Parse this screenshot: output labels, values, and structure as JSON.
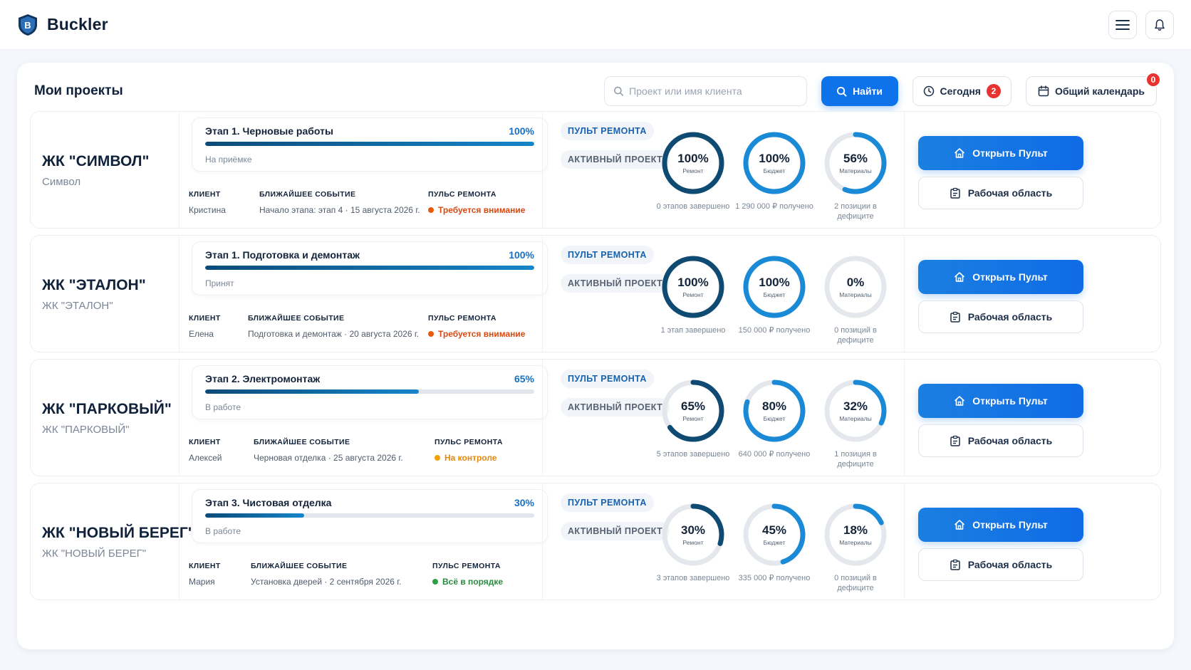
{
  "app": {
    "name": "Buckler"
  },
  "header": {
    "menu_icon": "menu-icon",
    "bell_icon": "bell-icon"
  },
  "page": {
    "title": "Мои проекты",
    "search": {
      "placeholder": "Проект или имя клиента",
      "value": ""
    },
    "find_label": "Найти",
    "today_label": "Сегодня",
    "today_count": "2",
    "calendar_label": "Общий календарь",
    "calendar_count": "0"
  },
  "labels": {
    "client": "КЛИЕНТ",
    "next_event": "БЛИЖАЙШЕЕ СОБЫТИЕ",
    "pulse": "ПУЛЬС РЕМОНТА",
    "chip_remont": "ПУЛЬТ РЕМОНТА",
    "chip_active": "АКТИВНЫЙ ПРОЕКТ",
    "ring_repair": "Ремонт",
    "ring_budget": "Бюджет",
    "ring_materials": "Материалы",
    "open_btn": "Открыть Пульт",
    "work_btn": "Рабочая область"
  },
  "colors": {
    "accent": "#0e72ea",
    "ring_dark": "#0e4a72",
    "ring_blue": "#1a8ad6",
    "ring_track": "#e4e7ec",
    "pulse_red": "#e8590c",
    "pulse_red_text": "#d9480f",
    "pulse_orange": "#f59f00",
    "pulse_orange_text": "#e8890c",
    "pulse_green": "#2f9e44",
    "pulse_green_text": "#2b8a3e"
  },
  "projects": [
    {
      "name": "ЖК \"СИМВОЛ\"",
      "subtitle": "Символ",
      "stage_title": "Этап 1. Черновые работы",
      "stage_pct": "100%",
      "stage_progress": 1.0,
      "stage_status": "На приёмке",
      "client": "Кристина",
      "next_event": "Начало этапа: этап 4 · 15 августа 2026 г.",
      "pulse": "Требуется внимание",
      "pulse_level": "red",
      "repair": {
        "value": "100%",
        "fraction": 1.0,
        "caption": "0 этапов завершено"
      },
      "budget": {
        "value": "100%",
        "fraction": 1.0,
        "caption": "1 290 000 ₽ получено"
      },
      "materials": {
        "value": "56%",
        "fraction": 0.56,
        "caption": "2 позиции в дефиците"
      }
    },
    {
      "name": "ЖК \"ЭТАЛОН\"",
      "subtitle": "ЖК \"ЭТАЛОН\"",
      "stage_title": "Этап 1. Подготовка и демонтаж",
      "stage_pct": "100%",
      "stage_progress": 1.0,
      "stage_status": "Принят",
      "client": "Елена",
      "next_event": "Подготовка и демонтаж · 20 августа 2026 г.",
      "pulse": "Требуется внимание",
      "pulse_level": "red",
      "repair": {
        "value": "100%",
        "fraction": 1.0,
        "caption": "1 этап завершено"
      },
      "budget": {
        "value": "100%",
        "fraction": 1.0,
        "caption": "150 000 ₽ получено"
      },
      "materials": {
        "value": "0%",
        "fraction": 0.0,
        "caption": "0 позиций в дефиците"
      }
    },
    {
      "name": "ЖК \"ПАРКОВЫЙ\"",
      "subtitle": "ЖК \"ПАРКОВЫЙ\"",
      "stage_title": "Этап 2. Электромонтаж",
      "stage_pct": "65%",
      "stage_progress": 0.65,
      "stage_status": "В работе",
      "client": "Алексей",
      "next_event": "Черновая отделка · 25 августа 2026 г.",
      "pulse": "На контроле",
      "pulse_level": "orange",
      "repair": {
        "value": "65%",
        "fraction": 0.65,
        "caption": "5 этапов завершено"
      },
      "budget": {
        "value": "80%",
        "fraction": 0.8,
        "caption": "640 000 ₽ получено"
      },
      "materials": {
        "value": "32%",
        "fraction": 0.32,
        "caption": "1 позиция в дефиците"
      }
    },
    {
      "name": "ЖК \"НОВЫЙ БЕРЕГ\"",
      "subtitle": "ЖК \"НОВЫЙ БЕРЕГ\"",
      "stage_title": "Этап 3. Чистовая отделка",
      "stage_pct": "30%",
      "stage_progress": 0.3,
      "stage_status": "В работе",
      "client": "Мария",
      "next_event": "Установка дверей · 2 сентября 2026 г.",
      "pulse": "Всё в порядке",
      "pulse_level": "green",
      "repair": {
        "value": "30%",
        "fraction": 0.3,
        "caption": "3 этапов завершено"
      },
      "budget": {
        "value": "45%",
        "fraction": 0.45,
        "caption": "335 000 ₽ получено"
      },
      "materials": {
        "value": "18%",
        "fraction": 0.18,
        "caption": "0 позиций в дефиците"
      }
    }
  ]
}
